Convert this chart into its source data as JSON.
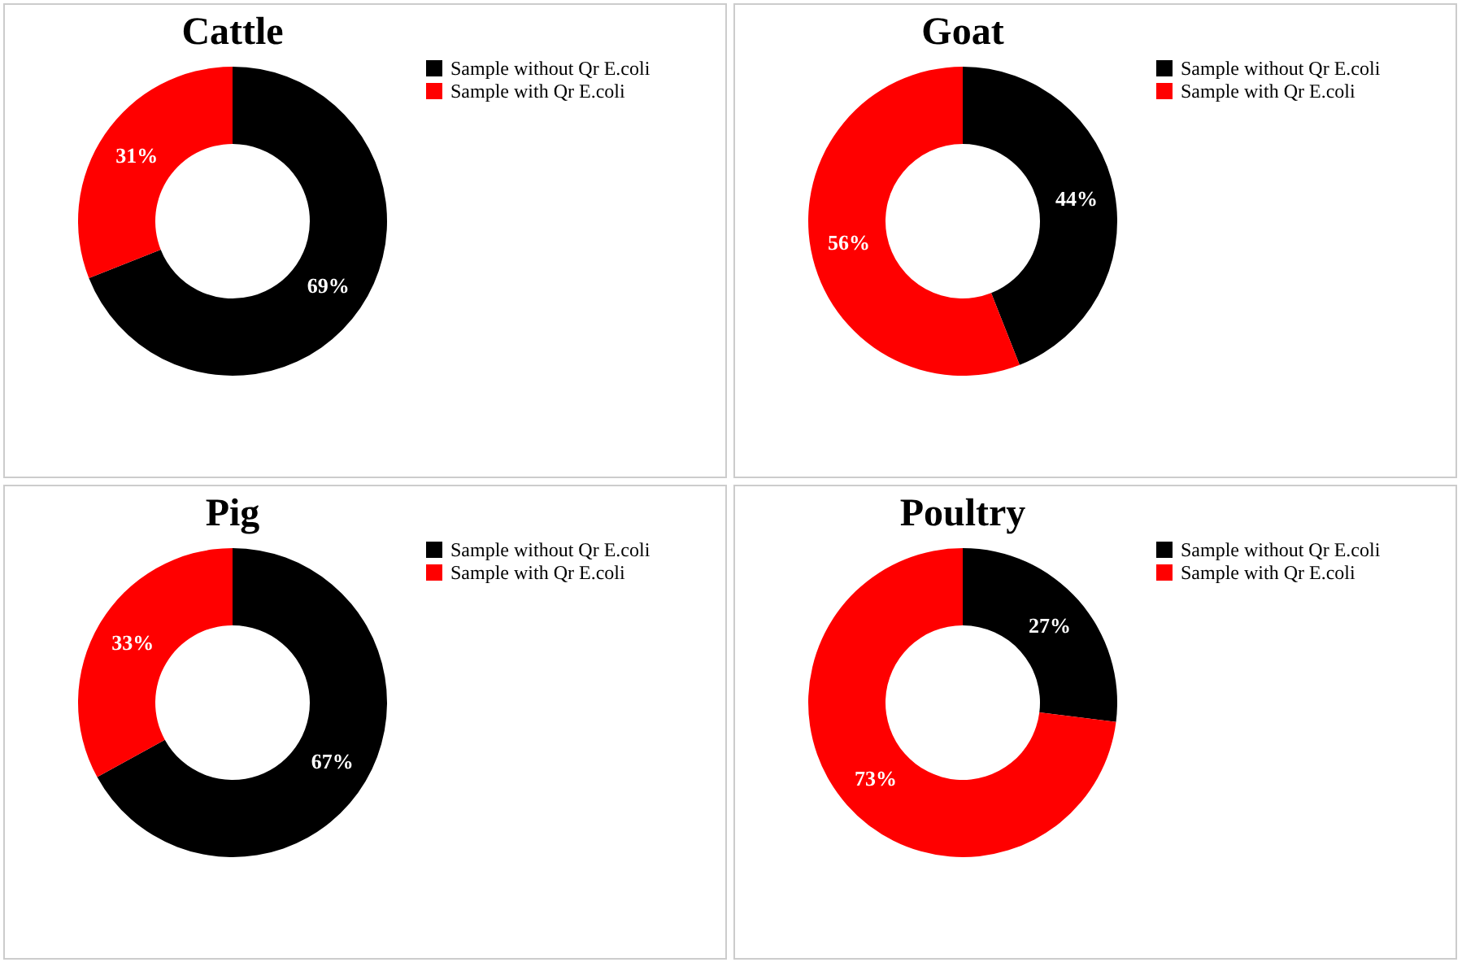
{
  "chart_data": [
    {
      "type": "donut",
      "title": "Cattle",
      "categories": [
        "Sample without Qr E.coli",
        "Sample with Qr E.coli"
      ],
      "values": [
        69,
        31
      ],
      "colors": [
        "#000000",
        "#ff0000"
      ],
      "value_labels": [
        "69%",
        "31%"
      ],
      "legend": "right"
    },
    {
      "type": "donut",
      "title": "Goat",
      "categories": [
        "Sample without Qr E.coli",
        "Sample with Qr E.coli"
      ],
      "values": [
        44,
        56
      ],
      "colors": [
        "#000000",
        "#ff0000"
      ],
      "value_labels": [
        "44%",
        "56%"
      ],
      "legend": "right"
    },
    {
      "type": "donut",
      "title": "Pig",
      "categories": [
        "Sample without Qr E.coli",
        "Sample with Qr E.coli"
      ],
      "values": [
        67,
        33
      ],
      "colors": [
        "#000000",
        "#ff0000"
      ],
      "value_labels": [
        "67%",
        "33%"
      ],
      "legend": "right"
    },
    {
      "type": "donut",
      "title": "Poultry",
      "categories": [
        "Sample without Qr E.coli",
        "Sample with Qr E.coli"
      ],
      "values": [
        27,
        73
      ],
      "colors": [
        "#000000",
        "#ff0000"
      ],
      "value_labels": [
        "27%",
        "73%"
      ],
      "legend": "right"
    }
  ]
}
